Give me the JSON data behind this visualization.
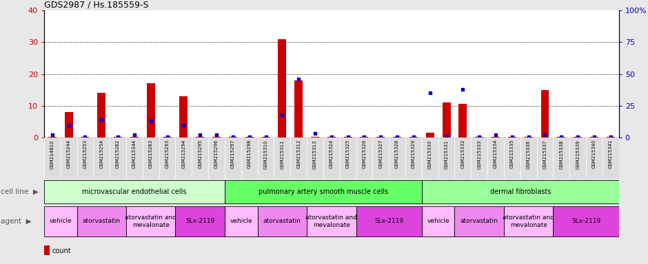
{
  "title": "GDS2987 / Hs.185559-S",
  "samples": [
    "GSM214810",
    "GSM215244",
    "GSM215253",
    "GSM215254",
    "GSM215282",
    "GSM215344",
    "GSM215283",
    "GSM215293",
    "GSM215294",
    "GSM215295",
    "GSM215296",
    "GSM215297",
    "GSM215298",
    "GSM215310",
    "GSM215311",
    "GSM215312",
    "GSM215313",
    "GSM215324",
    "GSM215325",
    "GSM215326",
    "GSM215327",
    "GSM215328",
    "GSM215329",
    "GSM215330",
    "GSM215331",
    "GSM215332",
    "GSM215333",
    "GSM215334",
    "GSM215335",
    "GSM215336",
    "GSM215337",
    "GSM215338",
    "GSM215339",
    "GSM215340",
    "GSM215341"
  ],
  "count_values": [
    0.3,
    8,
    0.3,
    14,
    0.3,
    0.3,
    17,
    0.3,
    13,
    0.3,
    0.3,
    0.3,
    0.3,
    0.3,
    31,
    18,
    0.3,
    0.3,
    0.3,
    0.3,
    0.3,
    0.3,
    0.3,
    1.5,
    11,
    10.5,
    0.3,
    0.3,
    0.3,
    0.3,
    15,
    0.3,
    0.3,
    0.3,
    0.3
  ],
  "percentile_values": [
    2,
    9,
    0.5,
    14,
    0.5,
    2,
    13,
    0.5,
    10,
    2,
    2,
    0.5,
    0.5,
    0.5,
    18,
    46,
    3,
    0.5,
    0.5,
    0.5,
    0.5,
    0.5,
    0.5,
    35,
    0.5,
    38,
    0.5,
    2,
    0.5,
    0.5,
    2,
    0.5,
    0.5,
    0.5,
    0.5
  ],
  "bar_color": "#cc0000",
  "dot_color": "#0000cc",
  "left_ylim": [
    0,
    40
  ],
  "right_ylim": [
    0,
    100
  ],
  "left_yticks": [
    0,
    10,
    20,
    30,
    40
  ],
  "right_yticks": [
    0,
    25,
    50,
    75,
    100
  ],
  "left_tick_color": "#cc0000",
  "right_tick_color": "#0000cc",
  "grid_dotted_values": [
    10,
    20,
    30
  ],
  "cell_line_groups": [
    {
      "label": "microvascular endothelial cells",
      "start": 0,
      "end": 11,
      "color": "#ccffcc"
    },
    {
      "label": "pulmonary artery smooth muscle cells",
      "start": 11,
      "end": 23,
      "color": "#66ff66"
    },
    {
      "label": "dermal fibroblasts",
      "start": 23,
      "end": 35,
      "color": "#99ff99"
    }
  ],
  "agent_groups": [
    {
      "label": "vehicle",
      "start": 0,
      "end": 2,
      "color": "#ffbbff"
    },
    {
      "label": "atorvastatin",
      "start": 2,
      "end": 5,
      "color": "#ee88ee"
    },
    {
      "label": "atorvastatin and\nmevalonate",
      "start": 5,
      "end": 8,
      "color": "#ffbbff"
    },
    {
      "label": "SLx-2119",
      "start": 8,
      "end": 11,
      "color": "#dd44dd"
    },
    {
      "label": "vehicle",
      "start": 11,
      "end": 13,
      "color": "#ffbbff"
    },
    {
      "label": "atorvastatin",
      "start": 13,
      "end": 16,
      "color": "#ee88ee"
    },
    {
      "label": "atorvastatin and\nmevalonate",
      "start": 16,
      "end": 19,
      "color": "#ffbbff"
    },
    {
      "label": "SLx-2119",
      "start": 19,
      "end": 23,
      "color": "#dd44dd"
    },
    {
      "label": "vehicle",
      "start": 23,
      "end": 25,
      "color": "#ffbbff"
    },
    {
      "label": "atorvastatin",
      "start": 25,
      "end": 28,
      "color": "#ee88ee"
    },
    {
      "label": "atorvastatin and\nmevalonate",
      "start": 28,
      "end": 31,
      "color": "#ffbbff"
    },
    {
      "label": "SLx-2119",
      "start": 31,
      "end": 35,
      "color": "#dd44dd"
    }
  ],
  "xticklabel_bg": "#dddddd",
  "background_color": "#e8e8e8",
  "plot_bg_color": "#ffffff",
  "fig_width": 9.4,
  "fig_height": 3.84
}
